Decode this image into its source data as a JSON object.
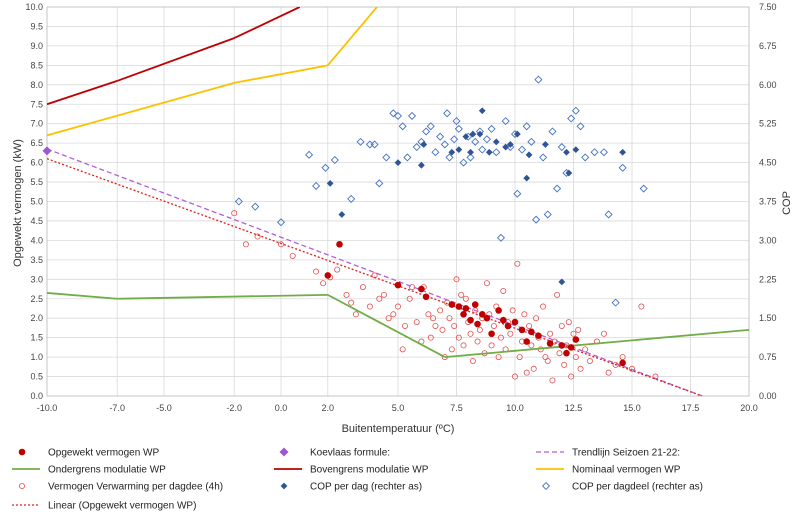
{
  "chart_data": {
    "type": "scatter",
    "xlabel": "Buitentemperatuur (ºC)",
    "ylabel_left": "Opgewekt vermogen (kW)",
    "ylabel_right": "COP",
    "xlim": [
      -10,
      20
    ],
    "ylim_left": [
      0,
      10
    ],
    "ylim_right": [
      0,
      7.5
    ],
    "grid": true,
    "legend_position": "bottom",
    "x_ticks": [
      "-10.0",
      "-7.0",
      "-5.0",
      "-2.0",
      "0.0",
      "2.0",
      "5.0",
      "7.5",
      "10.0",
      "12.5",
      "15.0",
      "17.5",
      "20.0"
    ],
    "y_left_ticks": [
      "0.0",
      "0.5",
      "1.0",
      "1.5",
      "2.0",
      "2.5",
      "3.0",
      "3.5",
      "4.0",
      "4.5",
      "5.0",
      "5.5",
      "6.0",
      "6.5",
      "7.0",
      "7.5",
      "8.0",
      "8.5",
      "9.0",
      "9.5",
      "10.0"
    ],
    "y_right_ticks": [
      "0.00",
      "0.75",
      "1.50",
      "2.25",
      "3.00",
      "3.75",
      "4.50",
      "5.25",
      "6.00",
      "6.75",
      "7.50"
    ],
    "series": [
      {
        "name": "Ondergrens modulatie WP",
        "kind": "line",
        "color": "#70ad47",
        "axis": "left",
        "x": [
          -10,
          -7,
          2,
          7,
          20
        ],
        "y": [
          2.65,
          2.5,
          2.6,
          1.0,
          1.7
        ]
      },
      {
        "name": "Bovengrens modulatie WP",
        "kind": "line",
        "color": "#c00000",
        "axis": "left",
        "x": [
          -10,
          -7,
          -2,
          0.8
        ],
        "y": [
          7.5,
          8.1,
          9.2,
          10.0
        ]
      },
      {
        "name": "Nominaal vermogen WP",
        "kind": "line",
        "color": "#ffc000",
        "axis": "left",
        "x": [
          -10,
          -2,
          2,
          4.1
        ],
        "y": [
          6.7,
          8.05,
          8.5,
          10.0
        ]
      },
      {
        "name": "Trendlijn Seizoen 21-22:",
        "kind": "dashed",
        "color": "#b060d8",
        "axis": "left",
        "x": [
          -10,
          18
        ],
        "y": [
          6.35,
          0
        ]
      },
      {
        "name": "Linear (Opgewekt vermogen WP)",
        "kind": "dotted",
        "color": "#e0201e",
        "axis": "left",
        "x": [
          -10,
          18
        ],
        "y": [
          6.1,
          0
        ]
      },
      {
        "name": "Koevlaas formule:",
        "kind": "diamond",
        "color": "#9b59d0",
        "axis": "left",
        "x": [
          -10
        ],
        "y": [
          6.3
        ]
      },
      {
        "name": "Opgewekt vermogen WP",
        "kind": "dot",
        "color": "#c00000",
        "axis": "left",
        "x": [
          2,
          2.5,
          5,
          6,
          6.2,
          7.3,
          7.6,
          7.8,
          7.9,
          8.1,
          8.3,
          8.4,
          8.6,
          8.8,
          9,
          9.3,
          9.5,
          9.7,
          10,
          10.3,
          10.5,
          10.7,
          11,
          11.5,
          12,
          12.2,
          12.4,
          12.6,
          14.6
        ],
        "y": [
          3.1,
          3.9,
          2.85,
          2.75,
          2.55,
          2.35,
          2.3,
          2.1,
          2.25,
          1.95,
          2.35,
          1.85,
          2.1,
          2.0,
          1.6,
          2.2,
          1.95,
          1.8,
          1.9,
          1.7,
          1.4,
          1.65,
          1.55,
          1.35,
          1.3,
          1.1,
          1.25,
          1.45,
          0.85
        ]
      },
      {
        "name": "Vermogen Verwarming per dagdee (4h)",
        "kind": "ring",
        "color": "#e55050",
        "axis": "left",
        "x": [
          -2,
          -1.5,
          -1,
          0,
          0.5,
          1.5,
          1.8,
          2.1,
          2.4,
          2.8,
          3,
          3.2,
          3.5,
          3.8,
          4,
          4.2,
          4.4,
          4.6,
          4.8,
          5,
          5.2,
          5.3,
          5.5,
          5.6,
          5.8,
          6,
          6.1,
          6.3,
          6.4,
          6.5,
          6.6,
          6.8,
          6.9,
          7,
          7.1,
          7.2,
          7.3,
          7.4,
          7.5,
          7.6,
          7.7,
          7.8,
          7.9,
          8,
          8.1,
          8.2,
          8.3,
          8.4,
          8.5,
          8.6,
          8.7,
          8.8,
          8.9,
          9,
          9.1,
          9.2,
          9.3,
          9.4,
          9.5,
          9.6,
          9.7,
          9.8,
          9.9,
          10,
          10.1,
          10.2,
          10.3,
          10.4,
          10.5,
          10.6,
          10.7,
          10.8,
          10.9,
          11,
          11.1,
          11.2,
          11.3,
          11.4,
          11.5,
          11.6,
          11.7,
          11.8,
          11.9,
          12,
          12.1,
          12.2,
          12.3,
          12.4,
          12.5,
          12.6,
          12.7,
          12.8,
          13,
          13.2,
          13.5,
          13.8,
          14,
          14.3,
          14.6,
          15,
          15.4,
          16
        ],
        "y": [
          4.7,
          3.9,
          4.1,
          3.9,
          3.6,
          3.2,
          2.9,
          3.05,
          3.25,
          2.6,
          2.4,
          2.1,
          2.8,
          2.3,
          3.1,
          2.5,
          2.6,
          2.0,
          2.1,
          2.3,
          1.2,
          1.8,
          2.5,
          2.8,
          1.9,
          1.4,
          2.8,
          2.1,
          1.5,
          2.0,
          1.8,
          2.2,
          1.7,
          1.0,
          2.4,
          2.0,
          1.2,
          1.8,
          3.0,
          1.5,
          2.6,
          1.3,
          2.5,
          1.9,
          1.6,
          0.9,
          2.2,
          1.4,
          1.7,
          2.0,
          1.1,
          2.9,
          2.1,
          1.3,
          1.8,
          2.3,
          1.0,
          1.5,
          2.7,
          1.2,
          1.9,
          1.6,
          2.2,
          0.5,
          3.4,
          1.0,
          1.4,
          2.1,
          0.6,
          1.8,
          1.3,
          0.7,
          2.0,
          1.5,
          1.2,
          2.3,
          1.0,
          0.9,
          1.6,
          0.4,
          1.4,
          2.6,
          1.1,
          1.8,
          0.8,
          1.3,
          1.9,
          0.5,
          1.6,
          1.0,
          1.7,
          0.7,
          1.2,
          0.9,
          1.4,
          1.6,
          0.6,
          0.8,
          1.0,
          0.7,
          2.3,
          0.5
        ]
      },
      {
        "name": "COP per dag (rechter as)",
        "kind": "filled-diamond",
        "color": "#2f5597",
        "axis": "right",
        "x": [
          2.1,
          2.6,
          5,
          6,
          6.1,
          7.3,
          7.6,
          7.9,
          8.1,
          8.2,
          8.5,
          8.6,
          8.9,
          9.2,
          9.6,
          9.8,
          10.1,
          10.5,
          10.6,
          11.3,
          12,
          12.2,
          12.3,
          12.6,
          14.6
        ],
        "y": [
          4.1,
          3.5,
          4.5,
          4.45,
          4.85,
          4.7,
          4.75,
          5.0,
          4.7,
          5.05,
          5.05,
          5.5,
          4.7,
          4.9,
          4.8,
          4.85,
          5.05,
          4.2,
          4.65,
          4.85,
          2.2,
          4.7,
          4.3,
          4.75,
          4.7
        ]
      },
      {
        "name": "COP per dagdeel (rechter as)",
        "kind": "diamond-outline",
        "color": "#4472c4",
        "axis": "right",
        "x": [
          -1.8,
          -1.1,
          0,
          1.2,
          1.5,
          1.9,
          2.3,
          3,
          3.4,
          3.8,
          4,
          4.2,
          4.5,
          4.8,
          5,
          5.2,
          5.4,
          5.6,
          5.8,
          6,
          6.2,
          6.4,
          6.6,
          6.8,
          7,
          7.1,
          7.2,
          7.4,
          7.5,
          7.6,
          7.8,
          8,
          8.1,
          8.3,
          8.5,
          8.6,
          8.8,
          9,
          9.2,
          9.4,
          9.6,
          9.8,
          10,
          10.1,
          10.3,
          10.5,
          10.7,
          10.9,
          11,
          11.2,
          11.4,
          11.6,
          11.8,
          12,
          12.2,
          12.4,
          12.6,
          12.8,
          13,
          13.4,
          13.8,
          14,
          14.3,
          14.6,
          15.5
        ],
        "y": [
          3.75,
          3.65,
          3.35,
          4.65,
          4.05,
          4.4,
          4.55,
          3.8,
          4.9,
          4.85,
          4.85,
          4.1,
          4.6,
          5.45,
          5.4,
          5.2,
          4.6,
          5.4,
          4.8,
          4.9,
          5.1,
          5.2,
          4.7,
          5.0,
          4.85,
          5.45,
          4.6,
          4.95,
          5.3,
          5.15,
          4.5,
          5.0,
          4.6,
          4.9,
          5.1,
          4.75,
          4.95,
          5.15,
          4.7,
          3.05,
          5.3,
          4.8,
          5.05,
          3.9,
          4.75,
          5.2,
          4.9,
          3.4,
          6.1,
          4.6,
          3.5,
          5.1,
          4.0,
          4.8,
          4.3,
          5.35,
          5.5,
          5.2,
          4.6,
          4.7,
          4.7,
          3.5,
          1.8,
          4.4,
          4.0
        ]
      }
    ]
  },
  "legend": [
    {
      "label": "Opgewekt vermogen WP",
      "kind": "dot",
      "color": "#c00000"
    },
    {
      "label": "Koevlaas formule:",
      "kind": "diamond",
      "color": "#9b59d0"
    },
    {
      "label": "Trendlijn Seizoen 21-22:",
      "kind": "dashed",
      "color": "#b060d8"
    },
    {
      "label": "Ondergrens modulatie WP",
      "kind": "line",
      "color": "#70ad47"
    },
    {
      "label": "Bovengrens modulatie WP",
      "kind": "line",
      "color": "#c00000"
    },
    {
      "label": "Nominaal vermogen WP",
      "kind": "line",
      "color": "#ffc000"
    },
    {
      "label": "Vermogen Verwarming per dagdee (4h)",
      "kind": "ring",
      "color": "#e55050"
    },
    {
      "label": "COP per dag (rechter as)",
      "kind": "filled-diamond",
      "color": "#2f5597"
    },
    {
      "label": "COP per dagdeel (rechter as)",
      "kind": "diamond-outline",
      "color": "#4472c4"
    },
    {
      "label": "Linear (Opgewekt vermogen WP)",
      "kind": "dotted",
      "color": "#e0201e"
    }
  ]
}
